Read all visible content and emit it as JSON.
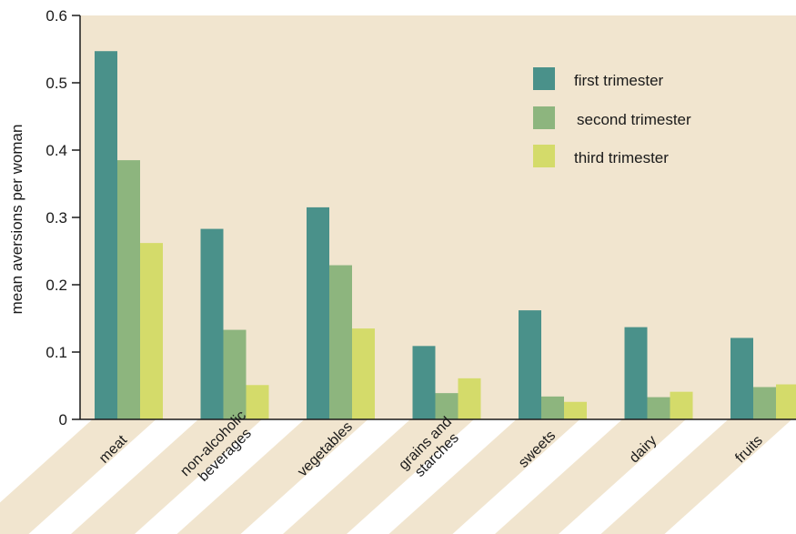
{
  "chart_data": {
    "type": "bar",
    "title": "",
    "xlabel": "",
    "ylabel": "mean aversions per woman",
    "ylim": [
      0,
      0.6
    ],
    "yticks": [
      "0",
      "0.1",
      "0.2",
      "0.3",
      "0.4",
      "0.5",
      "0.6"
    ],
    "ytick_values": [
      0,
      0.1,
      0.2,
      0.3,
      0.4,
      0.5,
      0.6
    ],
    "grid": false,
    "legend_position": "top-right",
    "categories": [
      [
        "meat"
      ],
      [
        "non-alcoholic",
        "beverages"
      ],
      [
        "vegetables"
      ],
      [
        "grains and",
        "starches"
      ],
      [
        "sweets"
      ],
      [
        "dairy"
      ],
      [
        "fruits"
      ]
    ],
    "series": [
      {
        "name": "first trimester",
        "color": "#4a918a",
        "values": [
          0.547,
          0.283,
          0.315,
          0.109,
          0.162,
          0.137,
          0.121
        ]
      },
      {
        "name": "second trimester",
        "color": "#8db57e",
        "values": [
          0.385,
          0.133,
          0.229,
          0.039,
          0.034,
          0.033,
          0.048
        ]
      },
      {
        "name": "third trimester",
        "color": "#d4db6a",
        "values": [
          0.262,
          0.051,
          0.135,
          0.061,
          0.026,
          0.041,
          0.052
        ]
      }
    ],
    "colors": {
      "plot_background": "#f1e5cf",
      "label_band": "#f1e5cf",
      "axis": "#1a1a1a"
    }
  }
}
